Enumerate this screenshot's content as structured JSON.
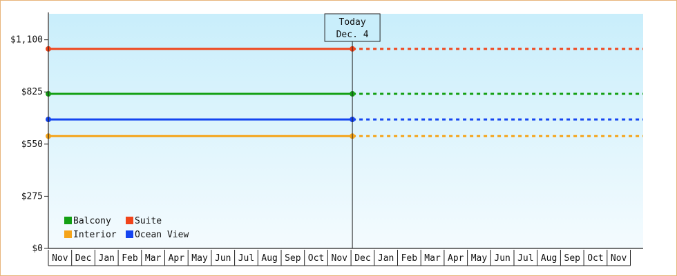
{
  "chart_data": {
    "type": "line",
    "categories": [
      "Nov",
      "Dec",
      "Jan",
      "Feb",
      "Mar",
      "Apr",
      "May",
      "Jun",
      "Jul",
      "Aug",
      "Sep",
      "Oct",
      "Nov",
      "Dec",
      "Jan",
      "Feb",
      "Mar",
      "Apr",
      "May",
      "Jun",
      "Jul",
      "Aug",
      "Sep",
      "Oct",
      "Nov"
    ],
    "ylim": [
      0,
      1237
    ],
    "yticks": [
      {
        "value": 0,
        "label": "$0"
      },
      {
        "value": 275,
        "label": "$275"
      },
      {
        "value": 550,
        "label": "$550"
      },
      {
        "value": 825,
        "label": "$825"
      },
      {
        "value": 1100,
        "label": "$1,100"
      }
    ],
    "today_index": 13,
    "today_label_1": "Today",
    "today_label_2": "Dec. 4",
    "series": [
      {
        "name": "Suite",
        "color": "#f0441a",
        "value": 1052,
        "legend_row": 0,
        "legend_col": 1
      },
      {
        "name": "Balcony",
        "color": "#14a014",
        "value": 815,
        "legend_row": 0,
        "legend_col": 0
      },
      {
        "name": "Ocean View",
        "color": "#1444f0",
        "value": 680,
        "legend_row": 1,
        "legend_col": 1
      },
      {
        "name": "Interior",
        "color": "#f5a41a",
        "value": 592,
        "legend_row": 1,
        "legend_col": 0
      }
    ],
    "grid": false,
    "legend_position": "bottom-left"
  },
  "colors": {
    "plot_top": "#c9eefb",
    "plot_bottom": "#f4fbfe",
    "axis": "#222222"
  }
}
